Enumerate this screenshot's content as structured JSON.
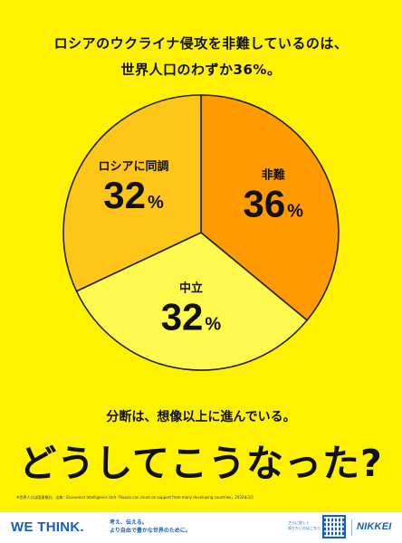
{
  "headline": {
    "line1": "ロシアのウクライナ侵攻を非難しているのは、",
    "line2": "世界人口のわずか36%。"
  },
  "chart_data": {
    "type": "pie",
    "unit": "%",
    "slices": [
      {
        "label": "非難",
        "value": 36,
        "color": "#ff9a00"
      },
      {
        "label": "中立",
        "value": 32,
        "color": "#fff94d"
      },
      {
        "label": "ロシアに同調",
        "value": 32,
        "color": "#ffc61a"
      }
    ]
  },
  "subline": "分断は、想像以上に進んでいる。",
  "big_question": "どうしてこうなった?",
  "footnote": "※世界人口は国連推計。出典：Economist Intelligence Unit「Russia can count on support from many developing countries」2022年3月",
  "footer": {
    "brand": "WE THINK.",
    "tagline_1": "考え、伝える。",
    "tagline_2": "より自由で豊かな世界のために。",
    "qr_caption_1": "さらに詳しく",
    "qr_caption_2": "知りたい方はこちら",
    "logo": "NIKKEI",
    "brand_color": "#1560bd"
  }
}
